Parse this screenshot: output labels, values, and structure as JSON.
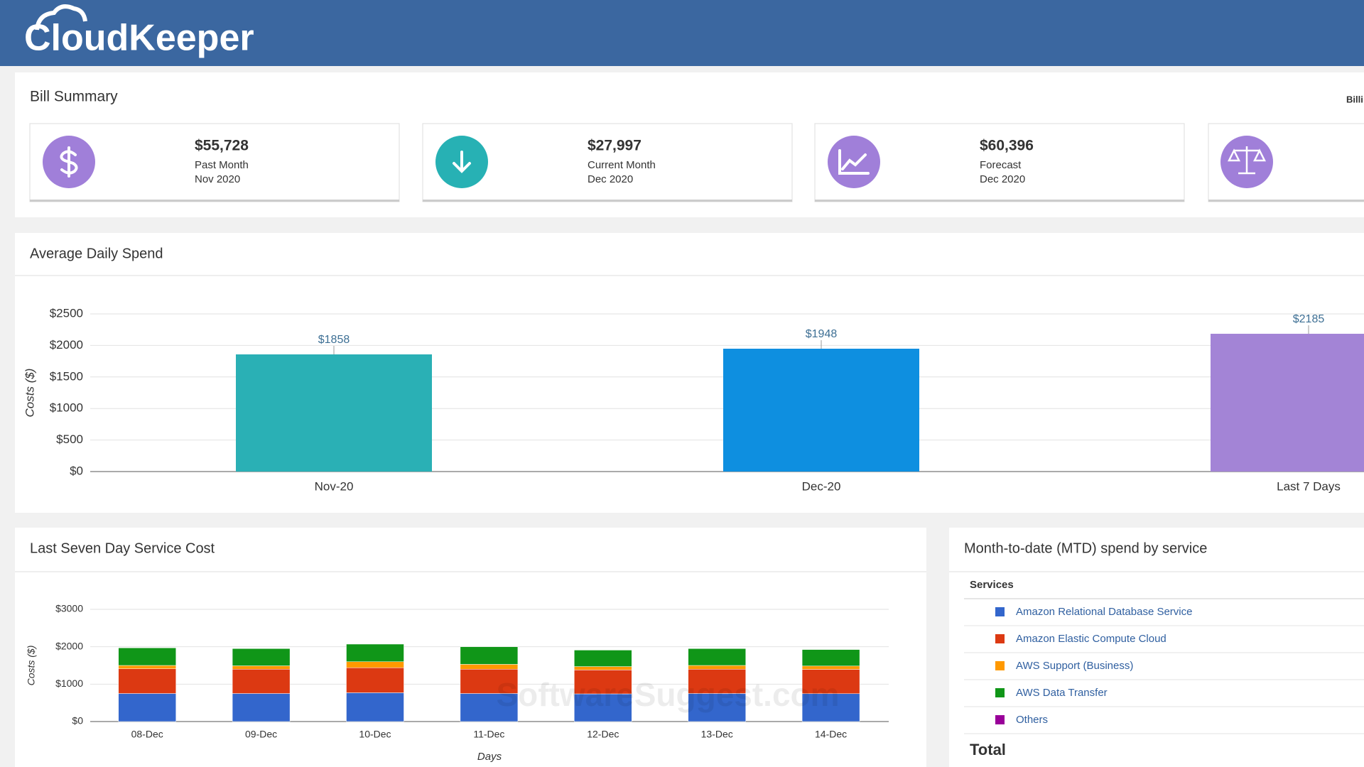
{
  "header": {
    "logo": "CloudKeeper"
  },
  "bill_summary": {
    "title": "Bill Summary",
    "side_label": "Billi",
    "cards": [
      {
        "amount": "$55,728",
        "label": "Past Month",
        "period": "Nov 2020"
      },
      {
        "amount": "$27,997",
        "label": "Current Month",
        "period": "Dec 2020"
      },
      {
        "amount": "$60,396",
        "label": "Forecast",
        "period": "Dec 2020"
      }
    ]
  },
  "panels": {
    "average_daily_spend": "Average Daily Spend",
    "last_seven_day": "Last Seven Day Service Cost"
  },
  "chart_data": [
    {
      "type": "bar",
      "categories": [
        "Nov-20",
        "Dec-20",
        "Last 7 Days"
      ],
      "values": [
        1858,
        1948,
        2185
      ],
      "value_labels": [
        "$1858",
        "$1948",
        "$2185"
      ],
      "colors": [
        "#2ab0b5",
        "#0e8fe0",
        "#a384d6"
      ],
      "y_label": "Costs ($)",
      "ylim": [
        0,
        2500
      ],
      "yticks": [
        {
          "value": 0,
          "label": "$0"
        },
        {
          "value": 500,
          "label": "$500"
        },
        {
          "value": 1000,
          "label": "$1000"
        },
        {
          "value": 1500,
          "label": "$1500"
        },
        {
          "value": 2000,
          "label": "$2000"
        },
        {
          "value": 2500,
          "label": "$2500"
        }
      ],
      "grid": true
    },
    {
      "type": "stacked_bar",
      "categories": [
        "08-Dec",
        "09-Dec",
        "10-Dec",
        "11-Dec",
        "12-Dec",
        "13-Dec",
        "14-Dec"
      ],
      "series": [
        {
          "color": "#3366cc",
          "values": [
            750,
            750,
            770,
            750,
            740,
            750,
            745
          ]
        },
        {
          "color": "#dc3912",
          "values": [
            660,
            650,
            670,
            650,
            640,
            650,
            650
          ]
        },
        {
          "color": "#ff9900",
          "values": [
            90,
            90,
            160,
            130,
            90,
            100,
            90
          ]
        },
        {
          "color": "#109618",
          "values": [
            470,
            460,
            470,
            470,
            440,
            450,
            440
          ]
        }
      ],
      "x_label": "Days",
      "y_label": "Costs ($)",
      "ylim": [
        0,
        3000
      ],
      "yticks": [
        {
          "value": 0,
          "label": "$0"
        },
        {
          "value": 1000,
          "label": "$1000"
        },
        {
          "value": 2000,
          "label": "$2000"
        },
        {
          "value": 3000,
          "label": "$3000"
        }
      ],
      "grid": true
    }
  ],
  "mtd": {
    "title": "Month-to-date (MTD) spend by service",
    "column": "Services",
    "items": [
      {
        "name": "Amazon Relational Database Service",
        "color": "#3366cc"
      },
      {
        "name": "Amazon Elastic Compute Cloud",
        "color": "#dc3912"
      },
      {
        "name": "AWS Support (Business)",
        "color": "#ff9900"
      },
      {
        "name": "AWS Data Transfer",
        "color": "#109618"
      },
      {
        "name": "Others",
        "color": "#990099"
      }
    ],
    "total": "Total"
  },
  "watermark": "SoftwareSuggest.com"
}
